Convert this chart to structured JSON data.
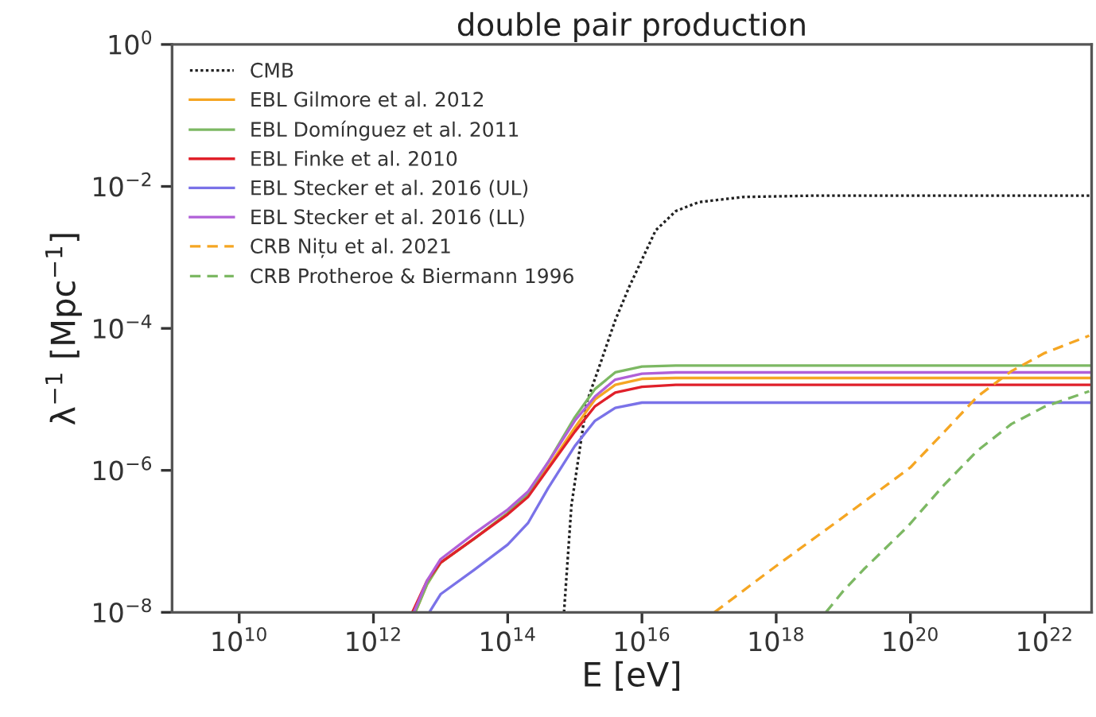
{
  "chart_data": {
    "type": "line",
    "title": "double pair production",
    "xlabel": "E [eV]",
    "ylabel": "λ$^{−1}$ [Mpc$^{−1}$]",
    "log": "xy",
    "grid": false,
    "legend": "top left",
    "xlim": [
      1000000000.0,
      5e+22
    ],
    "ylim": [
      1e-08,
      1
    ],
    "xticks": [
      {
        "value": 10000000000.0,
        "label": "10$^{10}$"
      },
      {
        "value": 1000000000000.0,
        "label": "10$^{12}$"
      },
      {
        "value": 100000000000000.0,
        "label": "10$^{14}$"
      },
      {
        "value": 1e+16,
        "label": "10$^{16}$"
      },
      {
        "value": 1e+18,
        "label": "10$^{18}$"
      },
      {
        "value": 1e+20,
        "label": "10$^{20}$"
      },
      {
        "value": 1e+22,
        "label": "10$^{22}$"
      }
    ],
    "yticks": [
      {
        "value": 1e-08,
        "label": "10$^{−8}$"
      },
      {
        "value": 1e-06,
        "label": "10$^{−6}$"
      },
      {
        "value": 0.0001,
        "label": "10$^{−4}$"
      },
      {
        "value": 0.01,
        "label": "10$^{−2}$"
      },
      {
        "value": 1,
        "label": "10$^{0}$"
      }
    ],
    "series": [
      {
        "name": "CMB",
        "color": "#222222",
        "line_style": "dotted",
        "x": [
          690000000000000.0,
          890000000000000.0,
          1500000000000000.0,
          2400000000000000.0,
          4000000000000000.0,
          6500000000000000.0,
          1.6e+16,
          3.2e+16,
          7e+16,
          3.2e+17,
          3.2e+18,
          5e+22
        ],
        "values": [
          1e-08,
          3.2e-07,
          9e-06,
          3.2e-05,
          0.00013,
          0.00039,
          0.0024,
          0.0045,
          0.006,
          0.0071,
          0.0074,
          0.0074
        ]
      },
      {
        "name": "EBL Gilmore et al. 2012",
        "color": "#f5a623",
        "line_style": "solid",
        "x": [
          4200000000000.0,
          6300000000000.0,
          10000000000000.0,
          32000000000000.0,
          100000000000000.0,
          200000000000000.0,
          400000000000000.0,
          1000000000000000.0,
          2000000000000000.0,
          4000000000000000.0,
          1e+16,
          3.2e+16,
          5e+22
        ],
        "values": [
          1e-08,
          2.5e-08,
          5e-08,
          1.1e-07,
          2.5e-07,
          4.5e-07,
          1.1e-06,
          4e-06,
          1e-05,
          1.6e-05,
          1.95e-05,
          2e-05,
          2e-05
        ]
      },
      {
        "name": "EBL Domínguez et al. 2011",
        "color": "#7cb863",
        "line_style": "solid",
        "x": [
          4200000000000.0,
          6300000000000.0,
          10000000000000.0,
          32000000000000.0,
          100000000000000.0,
          200000000000000.0,
          400000000000000.0,
          1000000000000000.0,
          2000000000000000.0,
          4000000000000000.0,
          1e+16,
          3.2e+16,
          5e+22
        ],
        "values": [
          1e-08,
          2.5e-08,
          5e-08,
          1.1e-07,
          2.5e-07,
          4.7e-07,
          1.3e-06,
          5.6e-06,
          1.4e-05,
          2.4e-05,
          2.9e-05,
          3e-05,
          3e-05
        ]
      },
      {
        "name": "EBL Finke et al. 2010",
        "color": "#e0202a",
        "line_style": "solid",
        "x": [
          3800000000000.0,
          6300000000000.0,
          10000000000000.0,
          32000000000000.0,
          100000000000000.0,
          200000000000000.0,
          400000000000000.0,
          1000000000000000.0,
          2000000000000000.0,
          4000000000000000.0,
          1e+16,
          3.2e+16,
          5e+22
        ],
        "values": [
          1e-08,
          2.8e-08,
          5e-08,
          1.1e-07,
          2.4e-07,
          4.2e-07,
          1.05e-06,
          3.5e-06,
          8e-06,
          1.25e-05,
          1.5e-05,
          1.6e-05,
          1.6e-05
        ]
      },
      {
        "name": "EBL Stecker et al. 2016 (UL)",
        "color": "#7a72e8",
        "line_style": "solid",
        "x": [
          6800000000000.0,
          10000000000000.0,
          32000000000000.0,
          100000000000000.0,
          200000000000000.0,
          400000000000000.0,
          1000000000000000.0,
          2000000000000000.0,
          4000000000000000.0,
          1e+16,
          5e+22
        ],
        "values": [
          1e-08,
          1.8e-08,
          4e-08,
          9e-08,
          1.8e-07,
          5.6e-07,
          2.2e-06,
          5e-06,
          7.6e-06,
          9e-06,
          9e-06
        ]
      },
      {
        "name": "EBL Stecker et al. 2016 (LL)",
        "color": "#b060d8",
        "line_style": "solid",
        "x": [
          4000000000000.0,
          6300000000000.0,
          10000000000000.0,
          32000000000000.0,
          100000000000000.0,
          200000000000000.0,
          400000000000000.0,
          1000000000000000.0,
          2000000000000000.0,
          4000000000000000.0,
          1e+16,
          3.2e+16,
          5e+22
        ],
        "values": [
          1e-08,
          2.8e-08,
          5.6e-08,
          1.3e-07,
          2.8e-07,
          5e-07,
          1.3e-06,
          5e-06,
          1.1e-05,
          1.9e-05,
          2.3e-05,
          2.4e-05,
          2.4e-05
        ]
      },
      {
        "name": "CRB Nițu et al. 2021",
        "color": "#f5a623",
        "line_style": "dashed",
        "x": [
          1.2e+17,
          1e+18,
          1e+19,
          1e+20,
          3.2e+20,
          1e+21,
          3.2e+21,
          1e+22,
          4.6e+22
        ],
        "values": [
          1e-08,
          4.5e-08,
          2.2e-07,
          1.1e-06,
          3.5e-06,
          1.1e-05,
          2.5e-05,
          4.5e-05,
          7.9e-05
        ]
      },
      {
        "name": "CRB Protheroe & Biermann 1996",
        "color": "#7cb863",
        "line_style": "dashed",
        "x": [
          5.5e+18,
          1e+19,
          2e+19,
          9e+19,
          3.2e+20,
          1e+21,
          3.2e+21,
          1e+22,
          4.6e+22
        ],
        "values": [
          1e-08,
          2e-08,
          4e-08,
          1.6e-07,
          6.3e-07,
          1.9e-06,
          4.5e-06,
          7.9e-06,
          1.3e-05
        ]
      }
    ]
  }
}
